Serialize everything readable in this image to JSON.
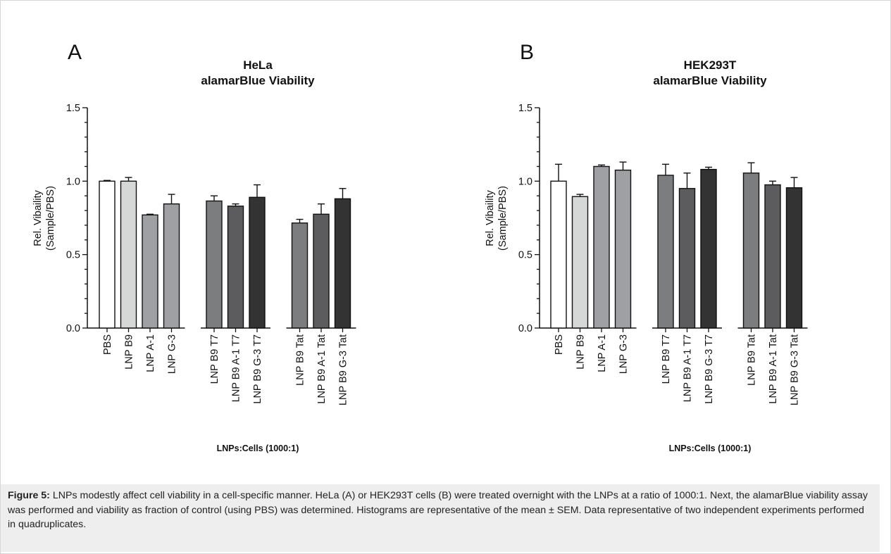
{
  "figure": {
    "caption_label": "Figure 5:",
    "caption_text": "LNPs modestly affect cell viability in a cell-specific manner. HeLa (A) or HEK293T cells (B) were treated overnight with the LNPs at a ratio of 1000:1. Next, the alamarBlue viability assay was performed and viability as fraction of control (using PBS) was determined. Histograms are representative of the mean ± SEM. Data representative of two independent experiments performed in quadruplicates."
  },
  "chart_data": [
    {
      "type": "bar",
      "panel": "A",
      "title_line1": "HeLa",
      "title_line2": "alamarBlue Viability",
      "ylabel_line1": "Rel. Vibaility",
      "ylabel_line2": "(Sample/PBS)",
      "xlabel": "LNPs:Cells (1000:1)",
      "ylim": [
        0,
        1.5
      ],
      "yticks": [
        "0.0",
        "0.5",
        "1.0",
        "1.5"
      ],
      "categories": [
        "PBS",
        "LNP B9",
        "LNP A-1",
        "LNP G-3",
        "LNP B9 T7",
        "LNP B9 A-1 T7",
        "LNP B9 G-3 T7",
        "LNP B9 Tat",
        "LNP B9 A-1 Tat",
        "LNP B9 G-3 Tat"
      ],
      "values": [
        1.0,
        1.0,
        0.77,
        0.845,
        0.865,
        0.83,
        0.89,
        0.715,
        0.775,
        0.88
      ],
      "errors": [
        0.005,
        0.025,
        0.005,
        0.065,
        0.035,
        0.015,
        0.085,
        0.025,
        0.07,
        0.07
      ],
      "colors": [
        "#ffffff",
        "#d6d8d8",
        "#9fa0a3",
        "#9fa0a3",
        "#7c7d7f",
        "#5c5c5e",
        "#333333",
        "#7c7d7f",
        "#5c5c5e",
        "#333333"
      ]
    },
    {
      "type": "bar",
      "panel": "B",
      "title_line1": "HEK293T",
      "title_line2": "alamarBlue Viability",
      "ylabel_line1": "Rel. Vibaility",
      "ylabel_line2": "(Sample/PBS)",
      "xlabel": "LNPs:Cells (1000:1)",
      "ylim": [
        0,
        1.5
      ],
      "yticks": [
        "0.0",
        "0.5",
        "1.0",
        "1.5"
      ],
      "categories": [
        "PBS",
        "LNP B9",
        "LNP A-1",
        "LNP G-3",
        "LNP B9 T7",
        "LNP B9 A-1 T7",
        "LNP B9 G-3 T7",
        "LNP B9 Tat",
        "LNP B9 A-1 Tat",
        "LNP B9 G-3 Tat"
      ],
      "values": [
        1.0,
        0.895,
        1.1,
        1.075,
        1.04,
        0.95,
        1.08,
        1.055,
        0.975,
        0.955
      ],
      "errors": [
        0.115,
        0.015,
        0.01,
        0.055,
        0.075,
        0.105,
        0.015,
        0.07,
        0.025,
        0.07
      ],
      "colors": [
        "#ffffff",
        "#d6d8d8",
        "#9fa0a3",
        "#9fa0a3",
        "#7c7d7f",
        "#5c5c5e",
        "#333333",
        "#7c7d7f",
        "#5c5c5e",
        "#333333"
      ]
    }
  ]
}
